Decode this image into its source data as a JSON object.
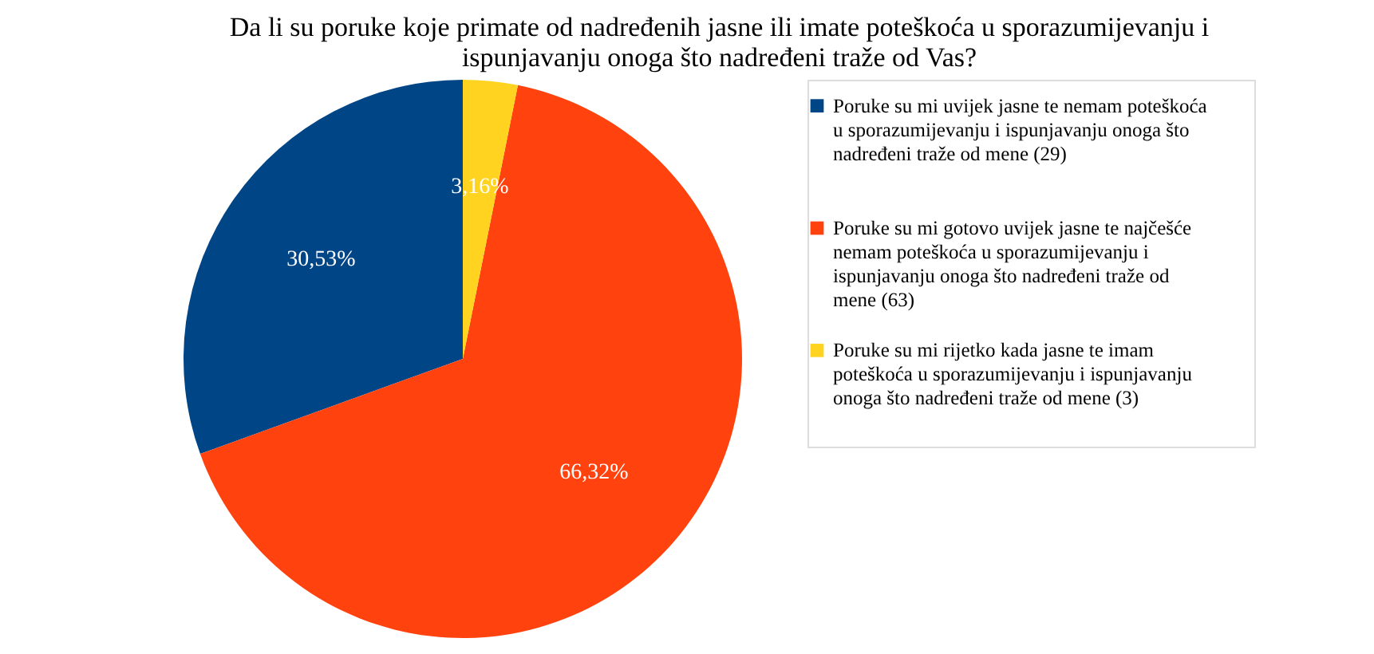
{
  "chart_data": {
    "type": "pie",
    "title": "Da li su poruke koje primate od nadređenih jasne ili imate poteškoća u sporazumijevanju i ispunjavanju onoga što nadređeni traže od Vas?",
    "categories": [
      "Poruke su mi uvijek jasne te nemam poteškoća u sporazumijevanju i ispunjavanju onoga što nadređeni traže od mene (29)",
      "Poruke su mi gotovo uvijek jasne te najčešće nemam poteškoća u sporazumijevanju i ispunjavanju onoga što nadređeni traže od mene (63)",
      "Poruke su mi rijetko kada jasne te imam poteškoća u sporazumijevanju i ispunjavanju onoga što nadređeni traže od mene (3)"
    ],
    "values": [
      30.53,
      66.32,
      3.16
    ],
    "value_labels": [
      "30,53%",
      "66,32%",
      "3,16%"
    ],
    "colors": [
      "#004586",
      "#ff420e",
      "#ffd320"
    ],
    "legend": "right"
  }
}
